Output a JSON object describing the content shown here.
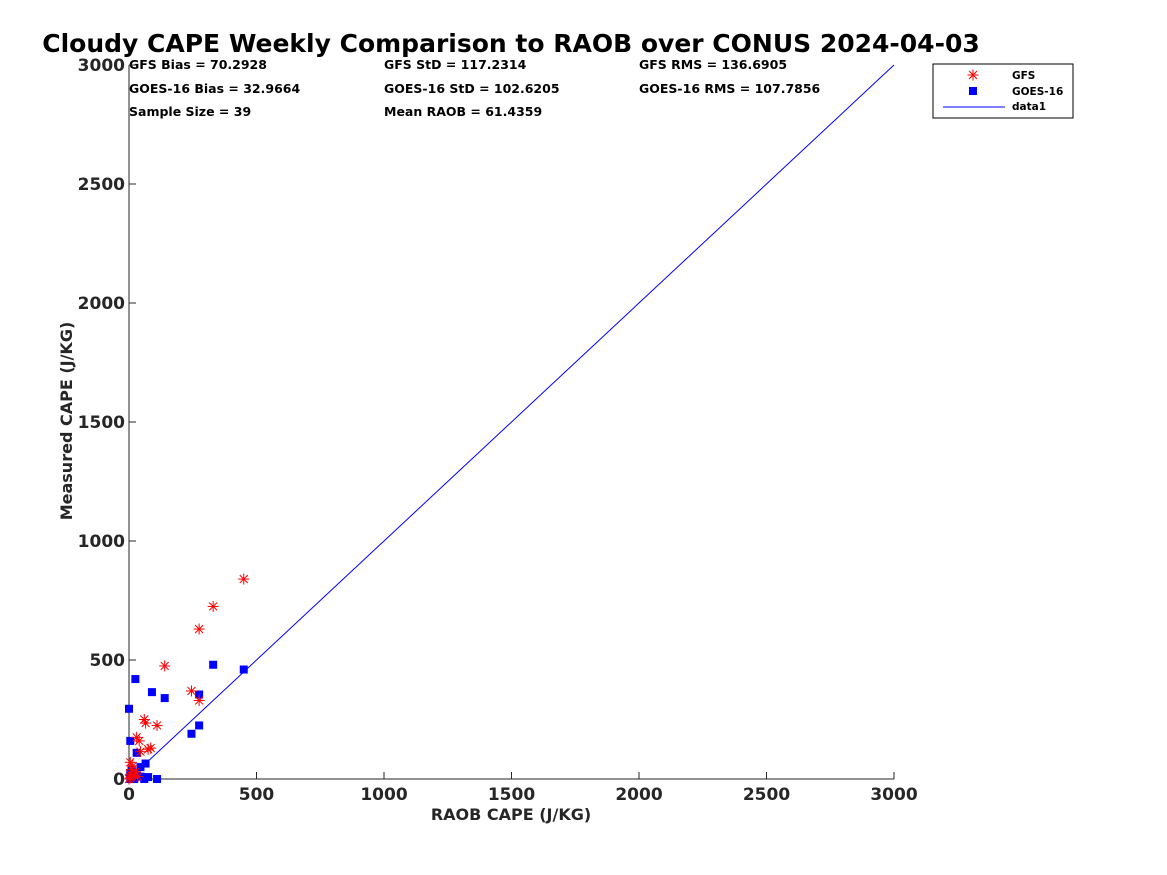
{
  "chart_data": {
    "type": "scatter",
    "title": "Cloudy CAPE Weekly Comparison to RAOB over CONUS 2024-04-03",
    "xlabel": "RAOB CAPE (J/KG)",
    "ylabel": "Measured CAPE (J/KG)",
    "xlim": [
      0,
      3000
    ],
    "ylim": [
      0,
      3000
    ],
    "x_ticks": [
      "0",
      "500",
      "1000",
      "1500",
      "2000",
      "2500",
      "3000"
    ],
    "y_ticks": [
      "0",
      "500",
      "1000",
      "1500",
      "2000",
      "2500",
      "3000"
    ],
    "x_tick_values": [
      0,
      500,
      1000,
      1500,
      2000,
      2500,
      3000
    ],
    "y_tick_values": [
      0,
      500,
      1000,
      1500,
      2000,
      2500,
      3000
    ],
    "grid": false,
    "legend_position": "top-right",
    "stats": {
      "gfs_bias": "GFS Bias = 70.2928",
      "gfs_std": "GFS StD = 117.2314",
      "gfs_rms": "GFS RMS = 136.6905",
      "goes_bias": "GOES-16 Bias = 32.9664",
      "goes_std": "GOES-16 StD = 102.6205",
      "goes_rms": "GOES-16 RMS = 107.7856",
      "sample_size": "Sample Size = 39",
      "mean_raob": "Mean RAOB = 61.4359"
    },
    "series": [
      {
        "name": "GFS",
        "color": "#ff0000",
        "marker": "asterisk",
        "points": [
          [
            450,
            840
          ],
          [
            330,
            725
          ],
          [
            275,
            630
          ],
          [
            140,
            475
          ],
          [
            245,
            370
          ],
          [
            275,
            330
          ],
          [
            110,
            225
          ],
          [
            60,
            250
          ],
          [
            65,
            235
          ],
          [
            30,
            175
          ],
          [
            40,
            160
          ],
          [
            85,
            130
          ],
          [
            75,
            125
          ],
          [
            45,
            115
          ],
          [
            5,
            70
          ],
          [
            15,
            55
          ],
          [
            10,
            40
          ],
          [
            25,
            30
          ],
          [
            5,
            20
          ],
          [
            20,
            15
          ],
          [
            35,
            10
          ],
          [
            5,
            5
          ],
          [
            0,
            0
          ]
        ]
      },
      {
        "name": "GOES-16",
        "color": "#0000ff",
        "marker": "square",
        "points": [
          [
            450,
            460
          ],
          [
            330,
            480
          ],
          [
            25,
            420
          ],
          [
            90,
            365
          ],
          [
            275,
            355
          ],
          [
            140,
            340
          ],
          [
            0,
            295
          ],
          [
            275,
            225
          ],
          [
            245,
            190
          ],
          [
            5,
            160
          ],
          [
            30,
            110
          ],
          [
            65,
            65
          ],
          [
            45,
            50
          ],
          [
            10,
            40
          ],
          [
            5,
            25
          ],
          [
            30,
            15
          ],
          [
            45,
            10
          ],
          [
            75,
            8
          ],
          [
            110,
            0
          ],
          [
            60,
            0
          ],
          [
            20,
            0
          ],
          [
            5,
            0
          ]
        ]
      },
      {
        "name": "data1",
        "color": "#0000ff",
        "marker": "line",
        "points": [
          [
            0,
            0
          ],
          [
            3000,
            3000
          ]
        ]
      }
    ]
  }
}
